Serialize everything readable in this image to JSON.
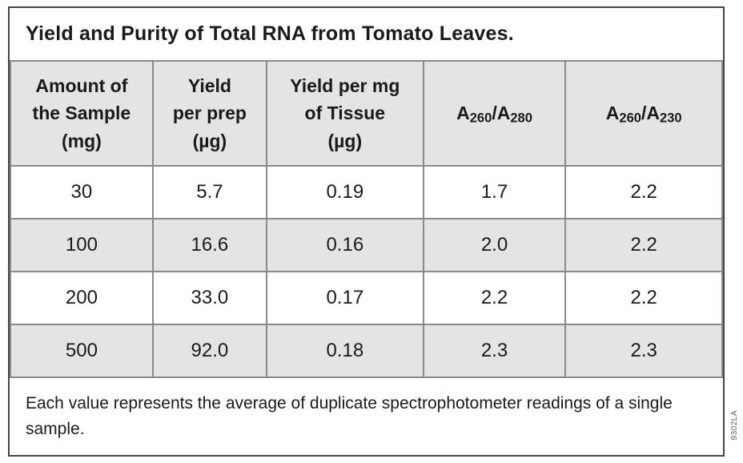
{
  "title": "Yield and Purity of Total RNA from Tomato Leaves.",
  "header": {
    "col1": "Amount of\nthe Sample\n(mg)",
    "col2": "Yield\nper prep\n(µg)",
    "col3": "Yield per mg\nof Tissue\n(µg)",
    "col4": {
      "base1": "A",
      "sub1": "260",
      "base2": "/A",
      "sub2": "280"
    },
    "col5": {
      "base1": "A",
      "sub1": "260",
      "base2": "/A",
      "sub2": "230"
    }
  },
  "rows": [
    [
      "30",
      "5.7",
      "0.19",
      "1.7",
      "2.2"
    ],
    [
      "100",
      "16.6",
      "0.16",
      "2.0",
      "2.2"
    ],
    [
      "200",
      "33.0",
      "0.17",
      "2.2",
      "2.2"
    ],
    [
      "500",
      "92.0",
      "0.18",
      "2.3",
      "2.3"
    ]
  ],
  "footnote": "Each value represents the average of duplicate spectrophotometer readings of a single sample.",
  "figure_code": "9302LA",
  "colors": {
    "header_bg": "#e4e4e4",
    "alt_row_bg": "#e4e4e4",
    "grid_line": "#8a8a8a",
    "outer_border": "#454547",
    "text": "#1a1a1a"
  },
  "chart_data": {
    "type": "table",
    "title": "Yield and Purity of Total RNA from Tomato Leaves.",
    "columns": [
      "Amount of the Sample (mg)",
      "Yield per prep (µg)",
      "Yield per mg of Tissue (µg)",
      "A260/A280",
      "A260/A230"
    ],
    "rows": [
      [
        30,
        5.7,
        0.19,
        1.7,
        2.2
      ],
      [
        100,
        16.6,
        0.16,
        2.0,
        2.2
      ],
      [
        200,
        33.0,
        0.17,
        2.2,
        2.2
      ],
      [
        500,
        92.0,
        0.18,
        2.3,
        2.3
      ]
    ],
    "footnote": "Each value represents the average of duplicate spectrophotometer readings of a single sample."
  }
}
